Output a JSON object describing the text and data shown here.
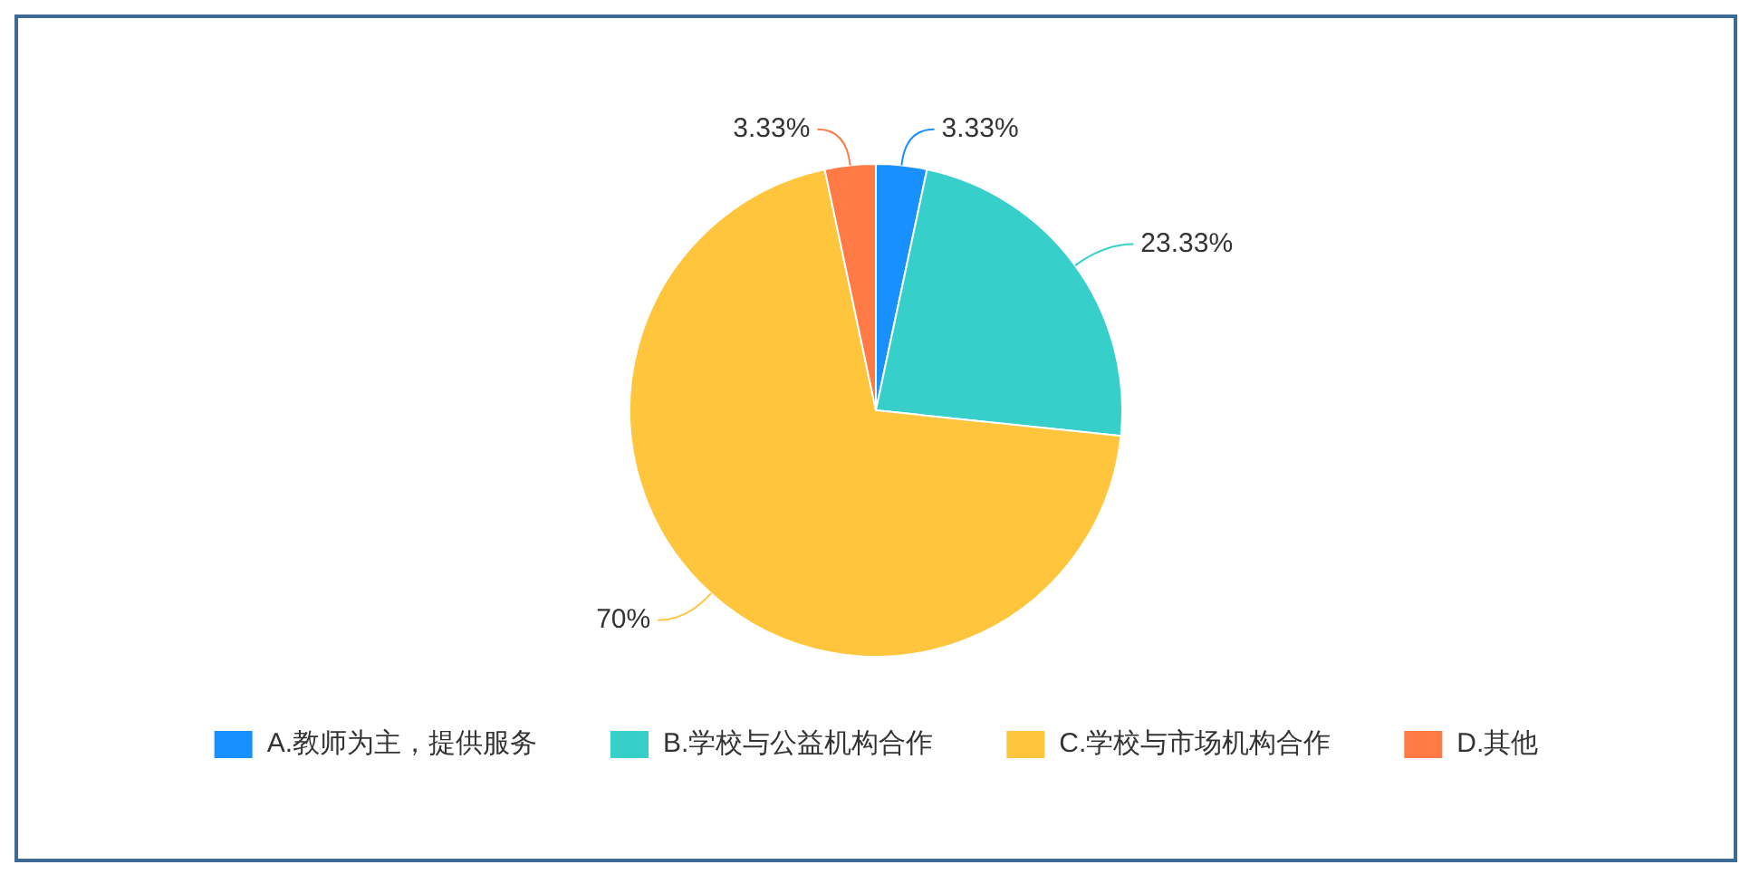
{
  "chart_data": {
    "type": "pie",
    "categories": [
      "A.教师为主，提供服务",
      "B.学校与公益机构合作",
      "C.学校与市场机构合作",
      "D.其他"
    ],
    "values": [
      3.33,
      23.33,
      70,
      3.33
    ],
    "colors": [
      "#1890ff",
      "#36cfca",
      "#ffc53d",
      "#ff7a45"
    ],
    "value_labels": [
      "3.33%",
      "23.33%",
      "70%",
      "3.33%"
    ],
    "legend": "bottom"
  }
}
